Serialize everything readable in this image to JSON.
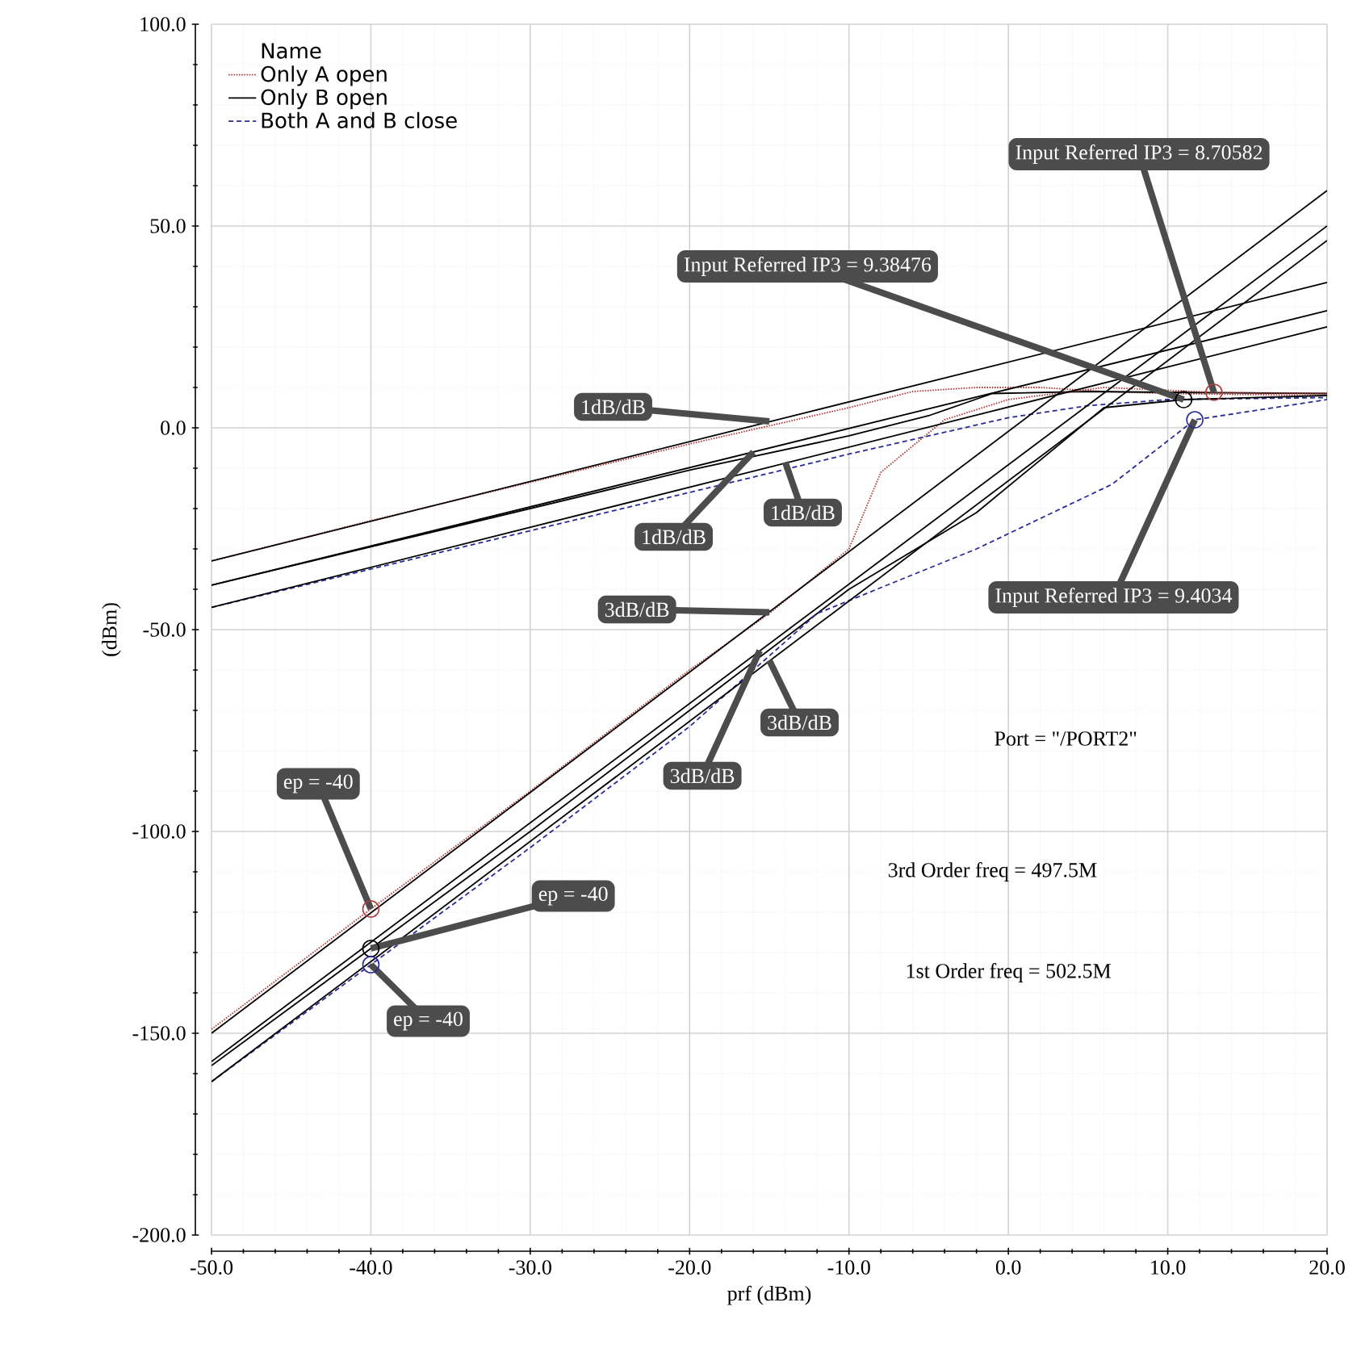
{
  "chart_data": {
    "type": "line",
    "xlabel": "prf (dBm)",
    "ylabel": "(dBm)",
    "legend_title": "Name",
    "xlim": [
      -50,
      20
    ],
    "ylim": [
      -200,
      100
    ],
    "xticks": [
      {
        "value": -50,
        "label": "-50.0"
      },
      {
        "value": -40,
        "label": "-40.0"
      },
      {
        "value": -30,
        "label": "-30.0"
      },
      {
        "value": -20,
        "label": "-20.0"
      },
      {
        "value": -10,
        "label": "-10.0"
      },
      {
        "value": 0,
        "label": "0.0"
      },
      {
        "value": 10,
        "label": "10.0"
      },
      {
        "value": 20,
        "label": "20.0"
      }
    ],
    "yticks": [
      {
        "value": -200,
        "label": "-200.0"
      },
      {
        "value": -150,
        "label": "-150.0"
      },
      {
        "value": -100,
        "label": "-100.0"
      },
      {
        "value": -50,
        "label": "-50.0"
      },
      {
        "value": 0,
        "label": "0.0"
      },
      {
        "value": 50,
        "label": "50.0"
      },
      {
        "value": 100,
        "label": "100.0"
      }
    ],
    "grid": true,
    "legend": "top left",
    "series": [
      {
        "name": "Only A open",
        "line_style": "dotted",
        "color": "#b03a3a",
        "x": [
          -50,
          -40,
          -30,
          -20,
          -10,
          -6,
          -2,
          2,
          6,
          10,
          20
        ],
        "values": [
          -33,
          -23,
          -13.5,
          -4,
          5,
          9,
          10,
          10,
          9,
          8.5,
          8
        ]
      },
      {
        "name": "Only B open",
        "line_style": "solid",
        "color": "#000000",
        "x": [
          -50,
          -40,
          -30,
          -20,
          -10,
          -5,
          -1,
          5,
          10,
          20
        ],
        "values": [
          -39,
          -29.5,
          -20,
          -10.5,
          -2,
          3,
          8.5,
          9,
          8.8,
          8.5
        ]
      },
      {
        "name": "Both A and B close",
        "line_style": "dashed",
        "color": "#2a2a9a",
        "x": [
          -50,
          -40,
          -30,
          -20,
          -10,
          -5,
          0,
          5,
          10,
          20
        ],
        "values": [
          -44.5,
          -35,
          -25.5,
          -16,
          -6.5,
          -2,
          2.5,
          5.5,
          7,
          7.5
        ]
      },
      {
        "type": "line",
        "line_style": "dotted",
        "color": "#b03a3a",
        "x": [
          -50,
          -40,
          -30,
          -20,
          -15,
          -10,
          -8,
          -4,
          0,
          6,
          12.9,
          20
        ],
        "values": [
          -149,
          -119.2,
          -90,
          -60,
          -46,
          -30,
          -11,
          2,
          7,
          10,
          8.8,
          8.5
        ]
      },
      {
        "type": "line",
        "line_style": "solid",
        "color": "#000000",
        "x": [
          -50,
          -40,
          -30,
          -20,
          -10,
          -2,
          6,
          11,
          20
        ],
        "values": [
          -158,
          -129,
          -100,
          -70,
          -40,
          -21,
          5,
          7,
          8
        ]
      },
      {
        "type": "line",
        "line_style": "dashed",
        "color": "#2a2a9a",
        "x": [
          -50,
          -40,
          -30,
          -20,
          -12,
          -2,
          6.5,
          11.7,
          20
        ],
        "values": [
          -162,
          -133,
          -104,
          -74,
          -46,
          -30,
          -14,
          2,
          7
        ]
      },
      {
        "type": "line",
        "line_style": "solid",
        "color": "#000000",
        "x": [
          -50,
          20
        ],
        "values": [
          -33,
          36
        ]
      },
      {
        "type": "line",
        "line_style": "solid",
        "color": "#000000",
        "x": [
          -50,
          20
        ],
        "values": [
          -39,
          29
        ]
      },
      {
        "type": "line",
        "line_style": "solid",
        "color": "#000000",
        "x": [
          -50,
          20
        ],
        "values": [
          -44.5,
          25
        ]
      },
      {
        "type": "line",
        "line_style": "solid",
        "color": "#000000",
        "x": [
          -50,
          20
        ],
        "values": [
          -150,
          58.8
        ]
      },
      {
        "type": "line",
        "line_style": "solid",
        "color": "#000000",
        "x": [
          -50,
          20
        ],
        "values": [
          -157,
          50
        ]
      },
      {
        "type": "line",
        "line_style": "solid",
        "color": "#000000",
        "x": [
          -50,
          20
        ],
        "values": [
          -162,
          46.4
        ]
      },
      {
        "type": "scatter",
        "marker": "circle",
        "color": "#b03a3a",
        "x": [
          -40,
          12.9
        ],
        "values": [
          -119.2,
          8.8
        ]
      },
      {
        "type": "scatter",
        "marker": "circle",
        "color": "#000000",
        "x": [
          -40,
          11
        ],
        "values": [
          -129,
          7
        ]
      },
      {
        "type": "scatter",
        "marker": "circle",
        "color": "#2a2a9a",
        "x": [
          -40,
          11.7
        ],
        "values": [
          -133,
          2
        ]
      }
    ],
    "annotations": [
      {
        "text": "Input Referred IP3 = 8.70582",
        "x": 12.9,
        "y": 8.8
      },
      {
        "text": "Input Referred IP3 = 9.38476",
        "x": 11,
        "y": 7
      },
      {
        "text": "Input Referred IP3 = 9.4034",
        "x": 11.7,
        "y": 2
      },
      {
        "text": "1dB/dB",
        "x": -15,
        "y": 1.6
      },
      {
        "text": "1dB/dB",
        "x": -16,
        "y": -6
      },
      {
        "text": "1dB/dB",
        "x": -14,
        "y": -8.5
      },
      {
        "text": "3dB/dB",
        "x": -15,
        "y": -45.7
      },
      {
        "text": "3dB/dB",
        "x": -15,
        "y": -57.6
      },
      {
        "text": "3dB/dB",
        "x": -15.6,
        "y": -55.2
      },
      {
        "text": "ep = -40",
        "x": -40,
        "y": -119.2
      },
      {
        "text": "ep = -40",
        "x": -40,
        "y": -129
      },
      {
        "text": "ep = -40",
        "x": -40,
        "y": -133
      },
      "Port = \"/PORT2\"",
      "3rd Order freq = 497.5M",
      "1st Order freq = 502.5M"
    ]
  }
}
